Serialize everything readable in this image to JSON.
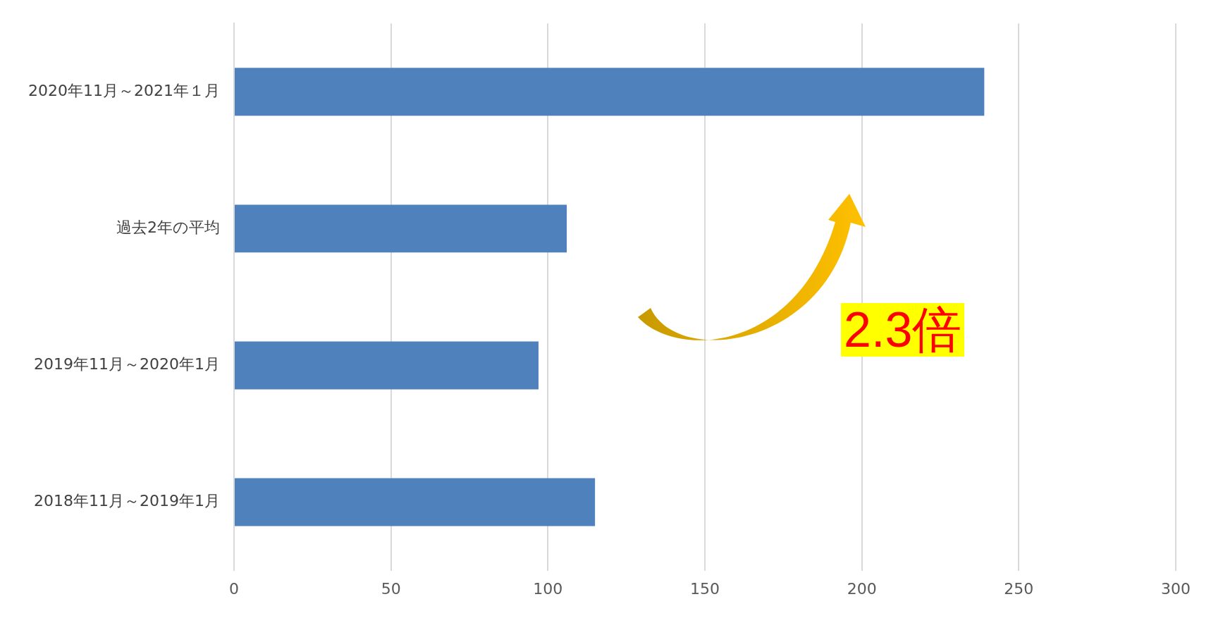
{
  "chart_data": {
    "type": "bar",
    "orientation": "horizontal",
    "categories": [
      "2020年11月～2021年１月",
      "過去2年の平均",
      "2019年11月～2020年1月",
      "2018年11月～2019年1月"
    ],
    "values": [
      239,
      106,
      97,
      115
    ],
    "color": "#4f81bd",
    "xlim": [
      0,
      300
    ],
    "xticks": [
      0,
      50,
      100,
      150,
      200,
      250,
      300
    ],
    "grid": "x",
    "annotations": [
      "2.3倍"
    ]
  }
}
